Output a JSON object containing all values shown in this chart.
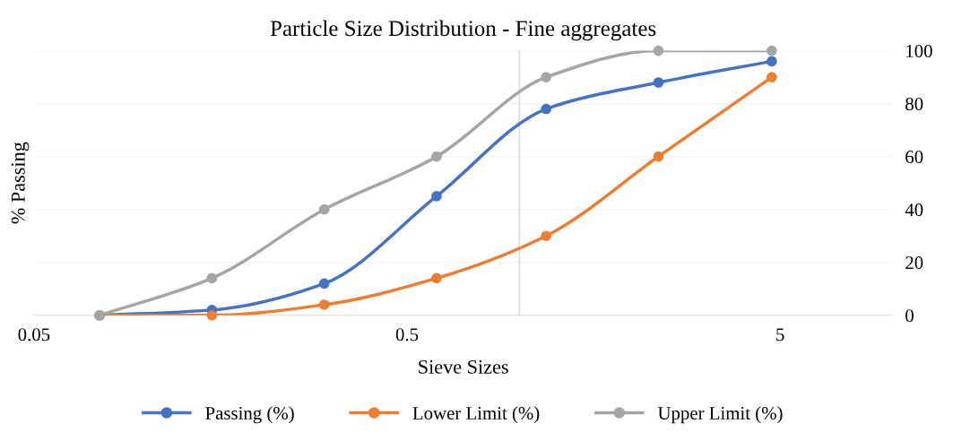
{
  "chart_data": {
    "type": "line",
    "title": "Particle Size Distribution - Fine aggregates",
    "xlabel": "Sieve Sizes",
    "ylabel": "% Passing",
    "x": [
      0.075,
      0.15,
      0.3,
      0.6,
      1.18,
      2.36,
      4.75
    ],
    "series": [
      {
        "name": "Passing (%)",
        "color": "#4472c4",
        "values": [
          0,
          2,
          12,
          45,
          78,
          88,
          96
        ]
      },
      {
        "name": "Lower Limit (%)",
        "color": "#ed7d31",
        "values": [
          0,
          0,
          4,
          14,
          30,
          60,
          90
        ]
      },
      {
        "name": "Upper Limit (%)",
        "color": "#a5a5a5",
        "values": [
          0,
          14,
          40,
          60,
          90,
          100,
          100
        ]
      }
    ],
    "log": "x",
    "xlim": [
      0.05,
      10
    ],
    "xticks": [
      0.05,
      0.5,
      5
    ],
    "ylim": [
      0,
      100
    ],
    "yticks": [
      0,
      20,
      40,
      60,
      80,
      100
    ],
    "ref_lines": [
      {
        "axis": "x",
        "value": 1,
        "color": "#d9d9d9"
      }
    ],
    "grid": "y",
    "legend": "bottom",
    "marker": "circle",
    "line_style": "solid"
  }
}
